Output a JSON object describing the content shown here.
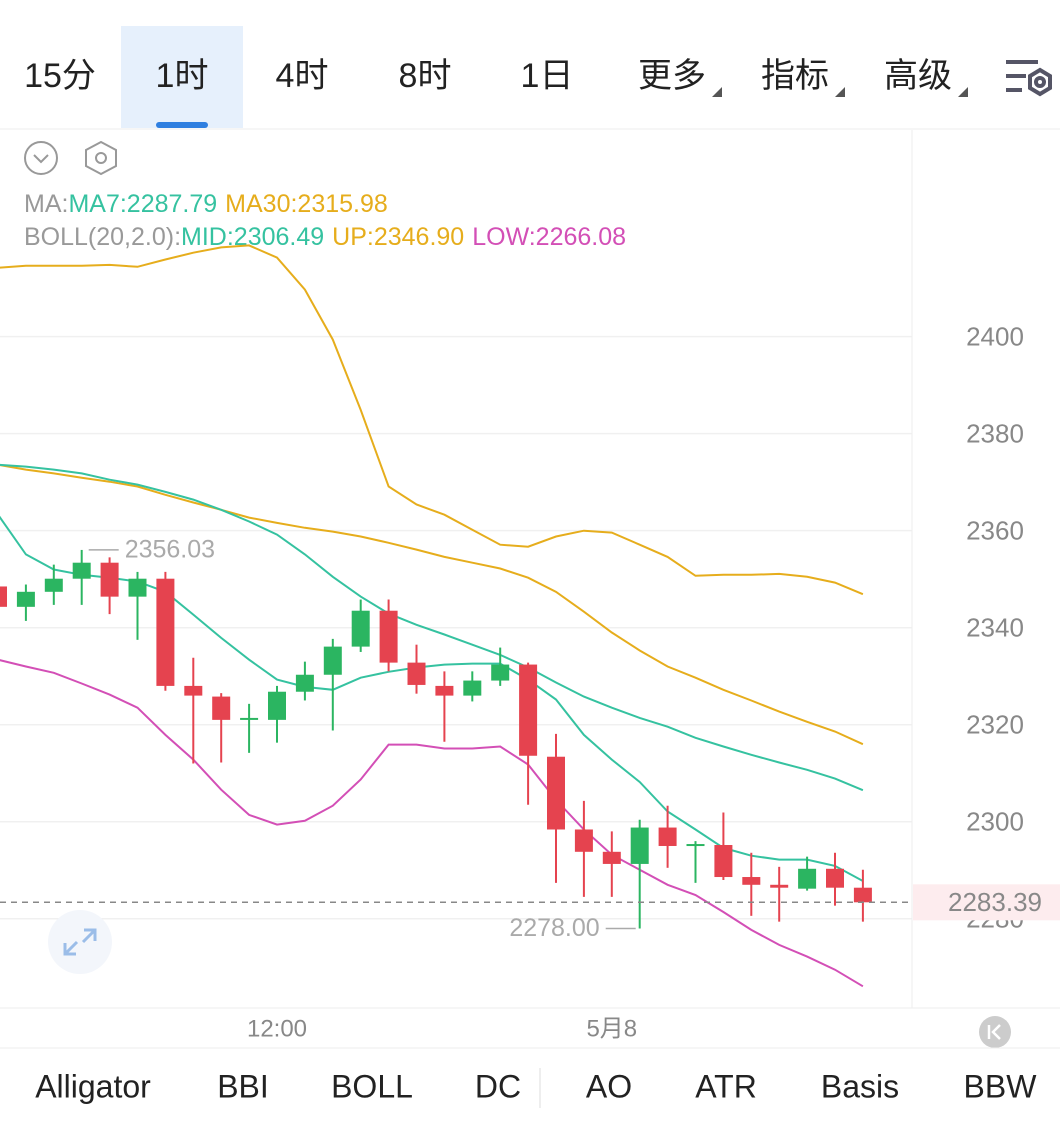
{
  "tabs": {
    "items": [
      "15分",
      "1时",
      "4时",
      "8时",
      "1日",
      "更多",
      "指标",
      "高级"
    ],
    "active": 1
  },
  "chart_data": {
    "type": "candlestick",
    "categories": [
      null,
      null,
      null,
      null,
      null,
      null,
      null,
      null,
      null,
      null,
      "12:00",
      null,
      null,
      null,
      null,
      null,
      null,
      null,
      null,
      null,
      null,
      null,
      "5月8",
      null,
      null,
      null,
      null,
      null,
      null,
      null,
      null,
      null
    ],
    "open": [
      2348.5,
      2344.3,
      2347.4,
      2350.1,
      2353.4,
      2346.4,
      2350.1,
      2328.0,
      2325.8,
      2321.0,
      2321.0,
      2326.8,
      2330.3,
      2336.1,
      2343.5,
      2332.8,
      2328.0,
      2326.0,
      2329.1,
      2332.4,
      2313.4,
      2298.4,
      2293.8,
      2291.3,
      2298.8,
      2295.0,
      2295.2,
      2288.6,
      2287.0,
      2286.2,
      2290.3,
      2286.4
    ],
    "high": [
      2349.0,
      2348.9,
      2353.0,
      2356.03,
      2354.5,
      2351.5,
      2351.5,
      2333.8,
      2326.5,
      2324.3,
      2328.0,
      2333.0,
      2337.7,
      2345.8,
      2345.8,
      2336.5,
      2331.0,
      2331.0,
      2335.9,
      2332.8,
      2318.1,
      2304.3,
      2298.0,
      2300.4,
      2303.3,
      2296.0,
      2301.9,
      2293.6,
      2290.7,
      2292.8,
      2293.6,
      2290.1
    ],
    "low": [
      2344.0,
      2341.4,
      2344.7,
      2344.7,
      2342.8,
      2337.5,
      2327.0,
      2312.0,
      2312.2,
      2314.2,
      2316.3,
      2325.0,
      2318.8,
      2335.0,
      2331.0,
      2326.4,
      2316.5,
      2324.8,
      2328.0,
      2303.5,
      2287.4,
      2284.5,
      2284.5,
      2278.0,
      2290.5,
      2287.4,
      2288.0,
      2280.6,
      2279.4,
      2285.8,
      2282.7,
      2279.4
    ],
    "close": [
      2344.3,
      2347.4,
      2350.1,
      2353.4,
      2346.4,
      2350.1,
      2328.0,
      2326.0,
      2321.0,
      2321.4,
      2326.8,
      2330.3,
      2336.1,
      2343.5,
      2332.8,
      2328.2,
      2326.0,
      2329.1,
      2332.4,
      2313.6,
      2298.4,
      2293.8,
      2291.3,
      2298.8,
      2295.0,
      2295.4,
      2288.6,
      2287.0,
      2286.4,
      2290.3,
      2286.4,
      2283.39
    ],
    "up_color": "#2bb561",
    "down_color": "#e5434f",
    "indicators": [
      {
        "label": "MA:",
        "series": [
          {
            "name": "MA7",
            "legend": "MA7:2287.79",
            "color": "#35c2a0",
            "values": [
              2363.3,
              2355.1,
              2352.0,
              2350.9,
              2350.3,
              2349.5,
              2347.4,
              2342.7,
              2337.9,
              2333.4,
              2329.3,
              2327.8,
              2327.2,
              2329.7,
              2330.9,
              2331.8,
              2332.4,
              2332.6,
              2332.6,
              2329.3,
              2325.2,
              2317.9,
              2312.8,
              2308.2,
              2302.1,
              2298.4,
              2294.6,
              2293.0,
              2292.2,
              2292.2,
              2290.9,
              2287.79
            ]
          },
          {
            "name": "MA30",
            "legend": "MA30:2315.98",
            "color": "#e6ad1c",
            "values": [
              2373.6,
              2372.6,
              2371.8,
              2370.9,
              2370.1,
              2369.1,
              2367.4,
              2365.8,
              2364.3,
              2362.7,
              2361.6,
              2360.6,
              2359.8,
              2358.8,
              2357.5,
              2356.1,
              2354.6,
              2353.4,
              2352.2,
              2350.3,
              2347.4,
              2343.3,
              2339.0,
              2335.3,
              2332.0,
              2329.7,
              2327.2,
              2325.0,
              2322.7,
              2320.6,
              2318.6,
              2315.98
            ]
          }
        ]
      },
      {
        "label": "BOLL(20,2.0):",
        "series": [
          {
            "name": "MID",
            "legend": "MID:2306.49",
            "color": "#35c2a0",
            "values": [
              2373.6,
              2373.2,
              2372.6,
              2371.8,
              2370.5,
              2369.5,
              2368.0,
              2366.4,
              2364.3,
              2361.9,
              2359.2,
              2355.1,
              2350.5,
              2346.4,
              2342.9,
              2340.6,
              2338.6,
              2336.5,
              2334.4,
              2331.8,
              2328.7,
              2325.8,
              2323.5,
              2321.4,
              2319.6,
              2317.3,
              2315.5,
              2313.8,
              2312.2,
              2310.7,
              2308.9,
              2306.49
            ]
          },
          {
            "name": "UP",
            "legend": "UP:2346.90",
            "color": "#e6ad1c",
            "values": [
              2414.2,
              2414.6,
              2414.6,
              2414.6,
              2414.8,
              2414.4,
              2415.9,
              2417.3,
              2418.4,
              2418.8,
              2416.3,
              2409.7,
              2399.4,
              2384.9,
              2369.1,
              2365.4,
              2363.3,
              2360.2,
              2357.1,
              2356.7,
              2358.8,
              2360.0,
              2359.6,
              2357.1,
              2354.6,
              2350.7,
              2350.9,
              2350.9,
              2351.1,
              2350.5,
              2349.3,
              2346.9
            ]
          },
          {
            "name": "LOW",
            "legend": "LOW:2266.08",
            "color": "#d34fb6",
            "values": [
              2333.4,
              2332.0,
              2330.7,
              2328.5,
              2326.2,
              2323.5,
              2317.9,
              2312.8,
              2306.6,
              2301.4,
              2299.4,
              2300.2,
              2303.3,
              2308.7,
              2315.9,
              2315.9,
              2315.1,
              2315.1,
              2315.5,
              2311.8,
              2304.5,
              2298.4,
              2293.2,
              2290.1,
              2287.0,
              2284.9,
              2281.4,
              2277.7,
              2274.6,
              2272.2,
              2269.5,
              2266.08
            ]
          }
        ]
      }
    ],
    "ylim": [
      2261.6,
      2442.6
    ],
    "yticks": [
      2280,
      2300,
      2320,
      2340,
      2360,
      2380,
      2400
    ],
    "grid": true,
    "last_price": 2283.39,
    "annotations": [
      {
        "label": "2356.03",
        "value": 2356.03
      },
      {
        "label": "2278.00",
        "value": 2278.0
      }
    ]
  },
  "indicator_tabs": {
    "items": [
      "Alligator",
      "BBI",
      "BOLL",
      "DC",
      "AO",
      "ATR",
      "Basis",
      "BBW"
    ],
    "active": 2
  }
}
